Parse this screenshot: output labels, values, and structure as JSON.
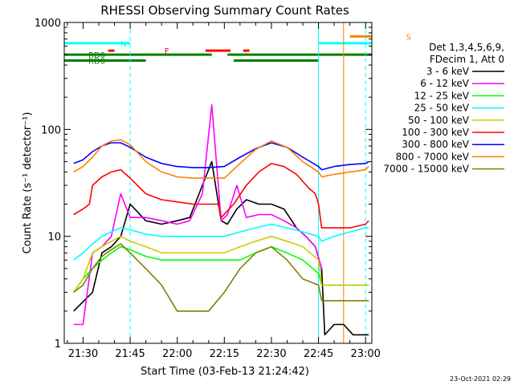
{
  "chart_data": {
    "type": "line",
    "title": "RHESSI Observing Summary Count Rates",
    "xlabel": "Start Time (03-Feb-13 21:24:42)",
    "ylabel": "Count Rate (s⁻¹ detector⁻¹)",
    "y_scale": "log",
    "ylim": [
      1,
      1000
    ],
    "xlim_min": [
      -6,
      92
    ],
    "y_ticks": [
      {
        "v": 1,
        "label": "1"
      },
      {
        "v": 10,
        "label": "10"
      },
      {
        "v": 100,
        "label": "100"
      },
      {
        "v": 1000,
        "label": "1000"
      }
    ],
    "x_ticks": [
      {
        "v": 0,
        "label": "21:30"
      },
      {
        "v": 15,
        "label": "21:45"
      },
      {
        "v": 30,
        "label": "22:00"
      },
      {
        "v": 45,
        "label": "22:15"
      },
      {
        "v": 60,
        "label": "22:30"
      },
      {
        "v": 75,
        "label": "22:45"
      },
      {
        "v": 90,
        "label": "23:00"
      }
    ],
    "legend_header": [
      "Det 1,3,4,5,6,9,",
      "FDecim 1, Att 0"
    ],
    "series": [
      {
        "name": "3 - 6 keV",
        "color": "#000000",
        "x": [
          -3,
          3,
          6,
          9,
          12,
          15,
          20,
          25,
          30,
          34,
          38,
          41,
          44,
          46,
          49,
          52,
          56,
          60,
          64,
          68,
          71,
          74,
          76,
          77,
          80,
          83,
          86,
          89,
          91
        ],
        "values": [
          2,
          3,
          7,
          8,
          10,
          20,
          14,
          13,
          14,
          15,
          30,
          50,
          14,
          13,
          18,
          22,
          20,
          20,
          18,
          12,
          10,
          8,
          5,
          1.2,
          1.5,
          1.5,
          1.2,
          1.2,
          1.2
        ]
      },
      {
        "name": "6 - 12 keV",
        "color": "#ff00ff",
        "x": [
          -3,
          0,
          3,
          6,
          9,
          12,
          15,
          20,
          25,
          30,
          34,
          38,
          41,
          44,
          46,
          49,
          52,
          56,
          60,
          64,
          68,
          71,
          74,
          76
        ],
        "values": [
          1.5,
          1.5,
          7,
          8,
          10,
          25,
          15,
          15,
          14,
          13,
          14,
          25,
          170,
          14,
          16,
          30,
          15,
          16,
          16,
          14,
          12,
          10,
          8,
          5
        ]
      },
      {
        "name": "12 - 25 keV",
        "color": "#00ff00",
        "x": [
          -3,
          0,
          3,
          6,
          9,
          12,
          15,
          20,
          25,
          30,
          35,
          40,
          45,
          50,
          55,
          60,
          65,
          70,
          75,
          76,
          80,
          85,
          90,
          91
        ],
        "values": [
          3,
          4,
          5,
          6,
          7,
          8,
          7.5,
          6.5,
          6,
          6,
          6,
          6,
          6,
          6,
          7,
          8,
          7,
          6,
          4.5,
          3.5,
          3.5,
          3.5,
          3.5,
          3.5
        ]
      },
      {
        "name": "25 - 50 keV",
        "color": "#00ffff",
        "x": [
          -3,
          0,
          3,
          6,
          9,
          12,
          15,
          20,
          25,
          30,
          35,
          40,
          45,
          50,
          55,
          60,
          65,
          70,
          75,
          76,
          80,
          85,
          90,
          91
        ],
        "values": [
          6,
          7,
          8.5,
          10,
          11,
          12,
          11.5,
          10.5,
          10,
          10,
          10,
          10,
          10,
          11,
          12,
          13,
          12,
          11,
          10,
          9,
          10,
          11,
          12,
          12
        ]
      },
      {
        "name": "50 - 100 keV",
        "color": "#cccc00",
        "x": [
          -3,
          0,
          3,
          6,
          9,
          12,
          15,
          20,
          25,
          30,
          35,
          40,
          45,
          50,
          55,
          60,
          65,
          70,
          75,
          76,
          80,
          85,
          90,
          91
        ],
        "values": [
          3,
          4,
          7,
          8,
          9,
          10,
          9,
          8,
          7,
          7,
          7,
          7,
          7,
          8,
          9,
          10,
          9,
          8,
          6,
          3.5,
          3.5,
          3.5,
          3.5,
          3.5
        ]
      },
      {
        "name": "100 - 300 keV",
        "color": "#ff0000",
        "x": [
          -3,
          0,
          2,
          3,
          6,
          9,
          12,
          15,
          20,
          25,
          30,
          35,
          40,
          43,
          44,
          48,
          52,
          56,
          60,
          64,
          68,
          72,
          74,
          75,
          76,
          80,
          85,
          90,
          91
        ],
        "values": [
          16,
          18,
          20,
          30,
          36,
          40,
          42,
          35,
          25,
          22,
          21,
          20,
          20,
          20,
          15,
          20,
          30,
          40,
          48,
          45,
          38,
          28,
          25,
          20,
          12,
          12,
          12,
          13,
          14
        ]
      },
      {
        "name": "300 - 800 keV",
        "color": "#0000ff",
        "x": [
          -3,
          0,
          3,
          6,
          9,
          12,
          15,
          20,
          25,
          30,
          35,
          40,
          45,
          50,
          55,
          60,
          65,
          70,
          75,
          76,
          80,
          85,
          90,
          91
        ],
        "values": [
          48,
          52,
          62,
          70,
          75,
          75,
          68,
          55,
          48,
          45,
          44,
          44,
          45,
          55,
          66,
          75,
          68,
          55,
          45,
          42,
          45,
          47,
          48,
          50
        ]
      },
      {
        "name": "800 - 7000 keV",
        "color": "#ff8000",
        "x": [
          -3,
          0,
          3,
          6,
          9,
          12,
          15,
          20,
          25,
          30,
          35,
          40,
          45,
          50,
          55,
          60,
          65,
          70,
          75,
          76,
          80,
          85,
          90,
          91
        ],
        "values": [
          40,
          45,
          55,
          70,
          78,
          80,
          72,
          50,
          40,
          36,
          35,
          35,
          35,
          48,
          65,
          78,
          68,
          50,
          40,
          36,
          38,
          40,
          42,
          45
        ]
      },
      {
        "name": "7000 - 15000 keV",
        "color": "#808000",
        "x": [
          -3,
          0,
          3,
          6,
          9,
          12,
          15,
          20,
          25,
          30,
          35,
          40,
          45,
          50,
          55,
          60,
          65,
          70,
          75,
          76,
          80,
          85,
          90,
          91
        ],
        "values": [
          3,
          3.5,
          5,
          6.5,
          7.5,
          8.5,
          7,
          5,
          3.5,
          2,
          2,
          2,
          3,
          5,
          7,
          8,
          6,
          4,
          3.5,
          2.5,
          2.5,
          2.5,
          2.5,
          2.5
        ]
      }
    ],
    "flag_lines": [
      {
        "label": "N",
        "color": "#00ffff",
        "y": 640,
        "segments": [
          [
            -6,
            15
          ],
          [
            75,
            92
          ]
        ]
      },
      {
        "label": "F",
        "color": "#ff0000",
        "y": 545,
        "segments": [
          [
            8,
            10
          ],
          [
            39,
            47
          ],
          [
            51,
            53
          ]
        ]
      },
      {
        "label": "S",
        "color": "#ff8000",
        "y": 740,
        "segments": [
          [
            85,
            92
          ]
        ]
      },
      {
        "label": "RD0",
        "color": "#008000",
        "y": 500,
        "segments": [
          [
            -6,
            20
          ],
          [
            20,
            41
          ],
          [
            46,
            75
          ],
          [
            75,
            92
          ]
        ]
      },
      {
        "label": "RD6",
        "color": "#008000",
        "y": 440,
        "segments": [
          [
            -6,
            20
          ],
          [
            48,
            75
          ]
        ]
      }
    ],
    "vlines": [
      {
        "x": 15,
        "color": "#00ffff",
        "dashed": true
      },
      {
        "x": 75,
        "color": "#00ffff",
        "dashed": false
      },
      {
        "x": 83,
        "color": "#ff8000",
        "dashed": false
      },
      {
        "x": 90,
        "color": "#00ffff",
        "dashed": true
      }
    ],
    "footer_date": "23-Oct-2021 02:29"
  }
}
